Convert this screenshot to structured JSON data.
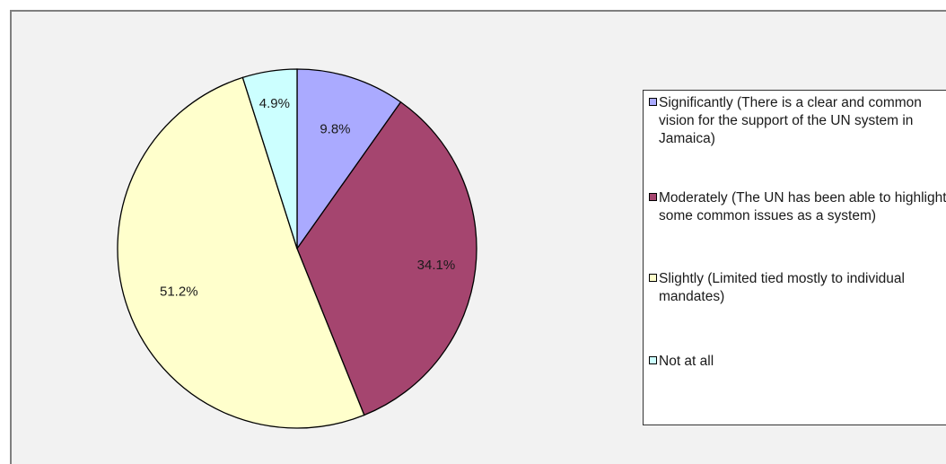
{
  "chart_data": {
    "type": "pie",
    "title": "",
    "slices": [
      {
        "label": "Significantly (There is a clear and common vision for the support of the UN system in Jamaica)",
        "value": 9.8,
        "display": "9.8%",
        "color": "#aaaaff"
      },
      {
        "label": "Moderately (The UN has been able to highlight some common issues as a system)",
        "value": 34.1,
        "display": "34.1%",
        "color": "#a5456f"
      },
      {
        "label": "Slightly (Limited tied mostly to individual mandates)",
        "value": 51.2,
        "display": "51.2%",
        "color": "#ffffcc"
      },
      {
        "label": "Not at all",
        "value": 4.9,
        "display": "4.9%",
        "color": "#ccffff"
      }
    ],
    "start_angle": "12 o'clock",
    "direction": "clockwise",
    "legend_position": "right"
  }
}
